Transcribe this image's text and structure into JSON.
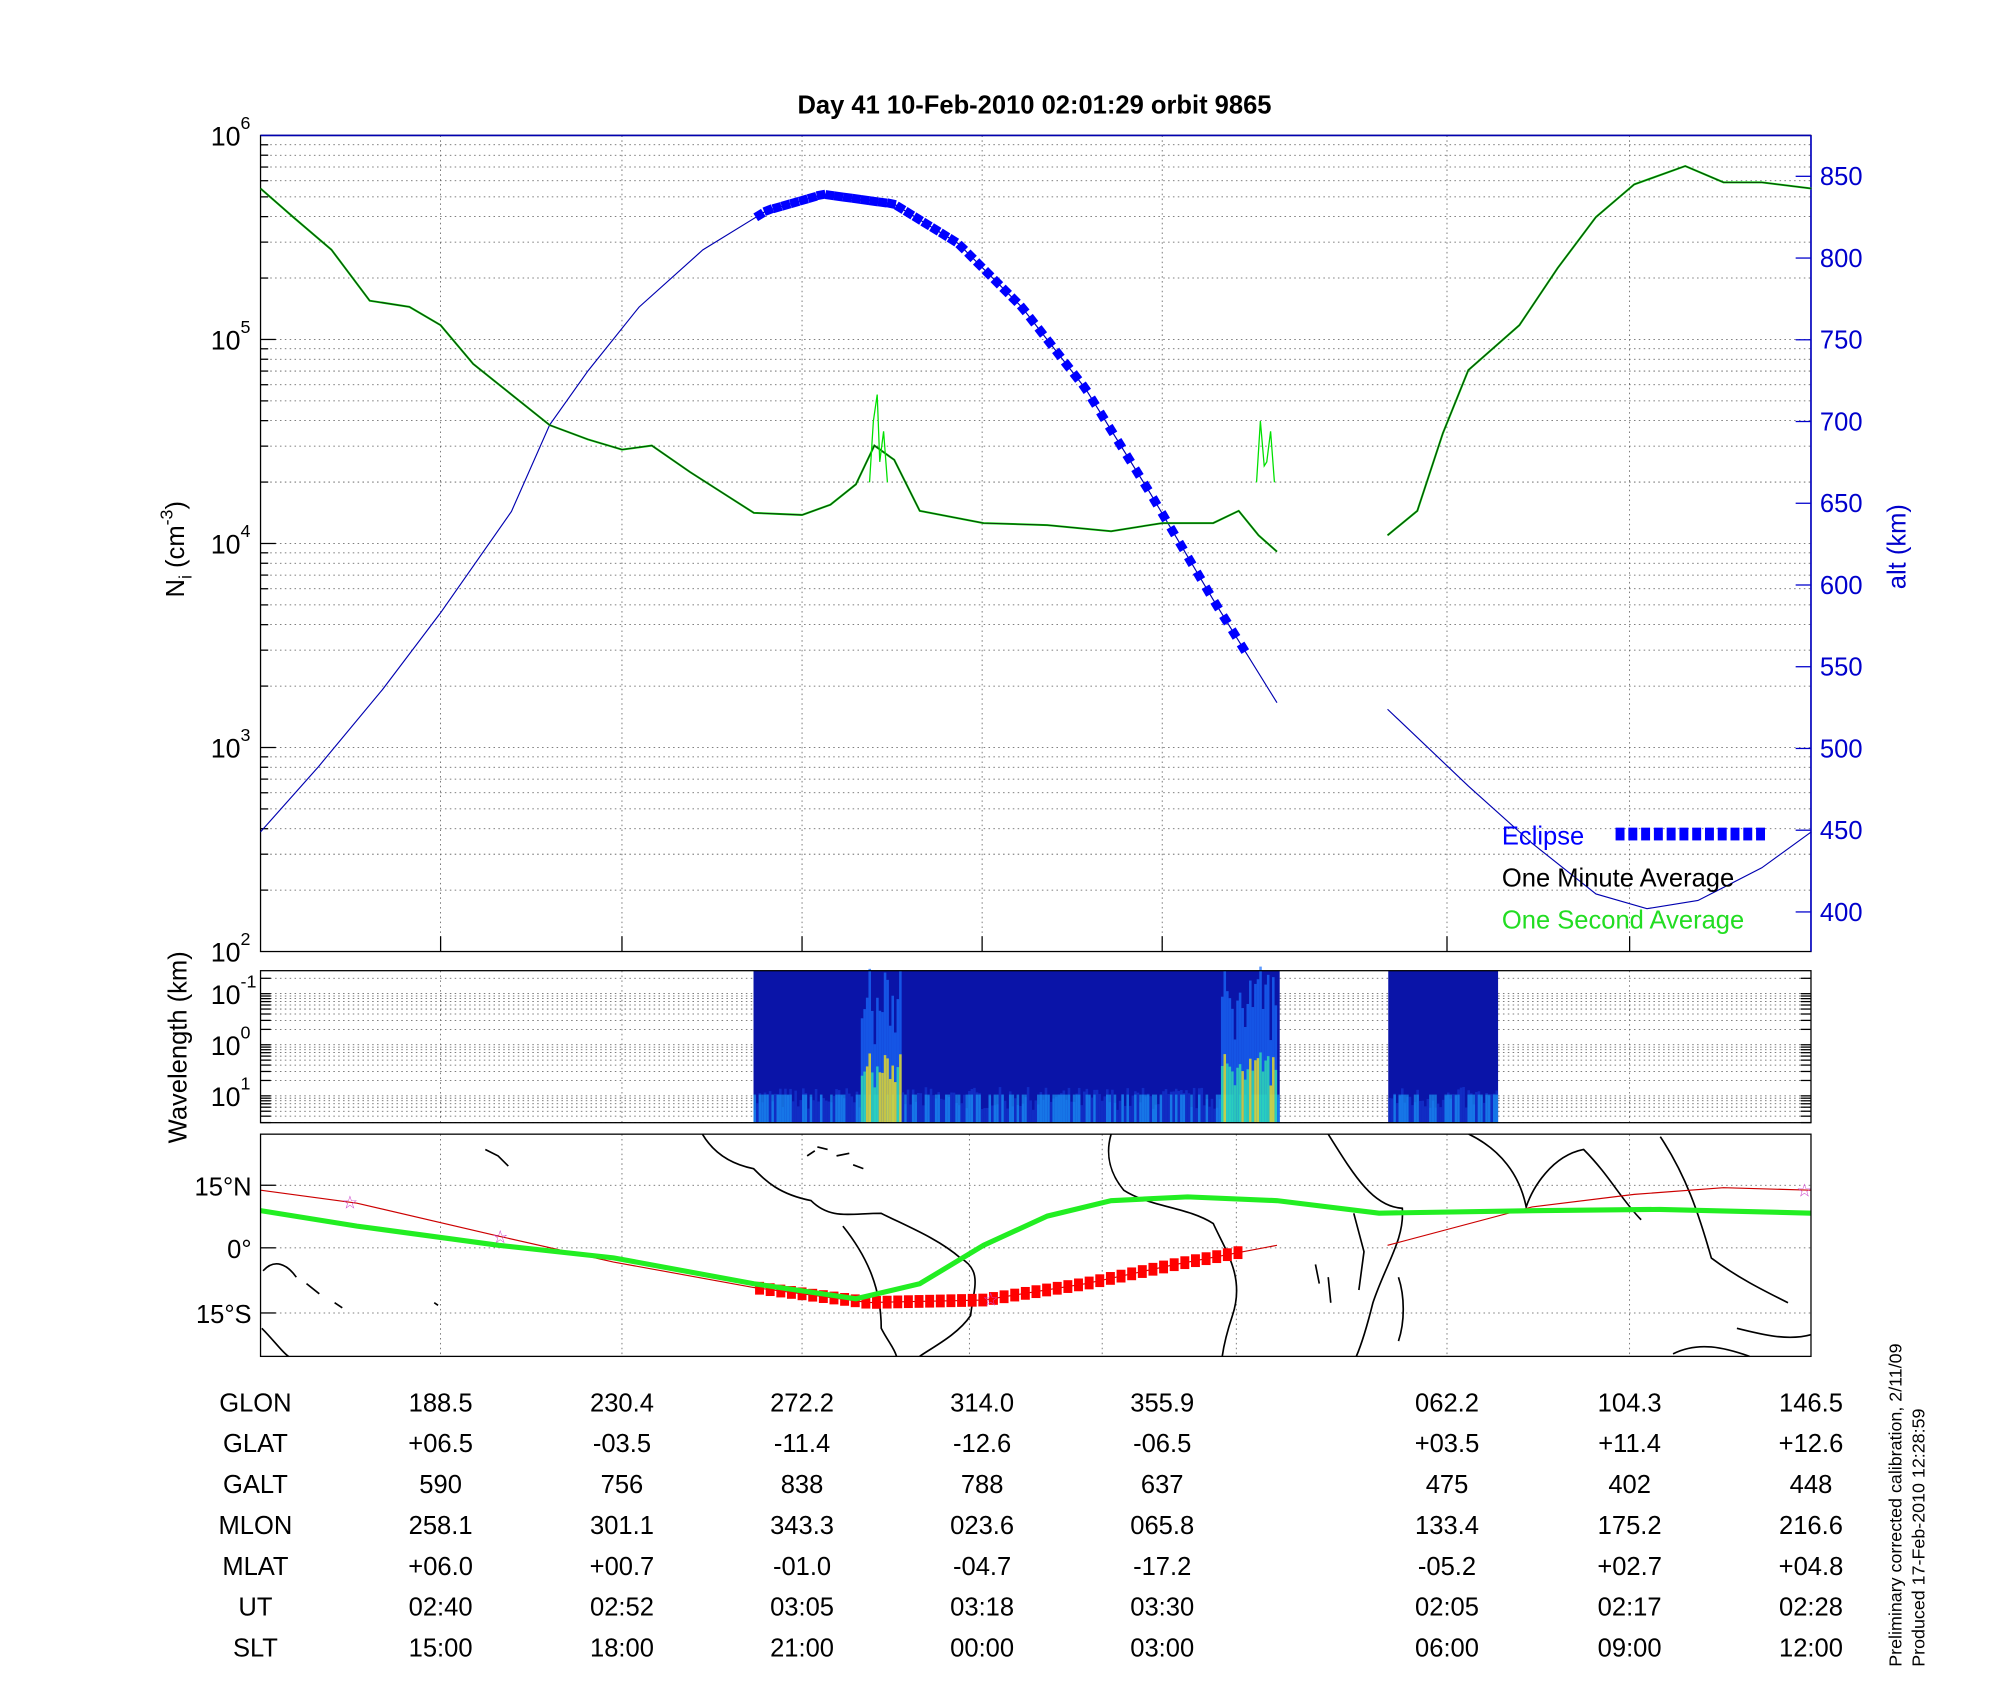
{
  "title": "Day 41  10-Feb-2010 02:01:29   orbit 9865",
  "colors": {
    "eclipse": "#0000ff",
    "minute_avg": "#000000",
    "second_avg": "#00e000",
    "altitude": "#0000b0",
    "orbit_track": "#cc0000",
    "eclipse_track": "#ff0000",
    "mag_equator": "#22ee22",
    "star": "#cc44cc"
  },
  "panel_density": {
    "ylabel_main": "N",
    "ylabel_sub": "i",
    "ylabel_unit": " (cm",
    "ylabel_exp": "-3",
    "ylabel_close": ")",
    "left_ticks": [
      {
        "base": "10",
        "exp": "6"
      },
      {
        "base": "10",
        "exp": "5"
      },
      {
        "base": "10",
        "exp": "4"
      },
      {
        "base": "10",
        "exp": "3"
      },
      {
        "base": "10",
        "exp": "2"
      }
    ],
    "right_label": "alt (km)",
    "right_ticks": [
      "850",
      "800",
      "750",
      "700",
      "650",
      "600",
      "550",
      "500",
      "450",
      "400"
    ],
    "legend": {
      "eclipse": "Eclipse",
      "minute": "One Minute Average",
      "second": "One Second Average"
    }
  },
  "panel_spectrogram": {
    "ylabel": "Wavelength (km)",
    "ticks": [
      {
        "base": "10",
        "exp": "-1"
      },
      {
        "base": "10",
        "exp": "0"
      },
      {
        "base": "10",
        "exp": "1"
      }
    ]
  },
  "panel_map": {
    "ticks": [
      "15°N",
      "0°",
      "15°S"
    ]
  },
  "table": {
    "labels": [
      "GLON",
      "GLAT",
      "GALT",
      "MLON",
      "MLAT",
      "UT",
      "SLT"
    ],
    "rows": [
      [
        "188.5",
        "230.4",
        "272.2",
        "314.0",
        "355.9",
        "062.2",
        "104.3",
        "146.5"
      ],
      [
        "+06.5",
        "-03.5",
        "-11.4",
        "-12.6",
        "-06.5",
        "+03.5",
        "+11.4",
        "+12.6"
      ],
      [
        "590",
        "756",
        "838",
        "788",
        "637",
        "475",
        "402",
        "448"
      ],
      [
        "258.1",
        "301.1",
        "343.3",
        "023.6",
        "065.8",
        "133.4",
        "175.2",
        "216.6"
      ],
      [
        "+06.0",
        "+00.7",
        "-01.0",
        "-04.7",
        "-17.2",
        "-05.2",
        "+02.7",
        "+04.8"
      ],
      [
        "02:40",
        "02:52",
        "03:05",
        "03:18",
        "03:30",
        "02:05",
        "02:17",
        "02:28"
      ],
      [
        "15:00",
        "18:00",
        "21:00",
        "00:00",
        "03:00",
        "06:00",
        "09:00",
        "12:00"
      ]
    ]
  },
  "footnote": {
    "line1": "Preliminary corrected calibration, 2/11/09",
    "line2": "Produced 17-Feb-2010 12:28:59"
  },
  "chart_data": {
    "type": "line",
    "title": "Day 41  10-Feb-2010 02:01:29   orbit 9865",
    "x_unit": "approx. minutes from left edge of plot",
    "xlim": [
      0,
      109.4
    ],
    "density": {
      "ylabel": "Ni (cm^-3)",
      "scale": "log",
      "ylim": [
        100,
        1000000
      ],
      "segments": [
        {
          "x": [
            0,
            2.3,
            5,
            7.7,
            10.5,
            12.7,
            15,
            17.7,
            20.4,
            23.1,
            25.5,
            27.6,
            30.3,
            33,
            34.8,
            38.2,
            40.2,
            42,
            43.3,
            44.7,
            46.5,
            51,
            55.5,
            60,
            63.6,
            67.2,
            69,
            70.4,
            71.7
          ],
          "log10_value": [
            5.74,
            5.6,
            5.44,
            5.19,
            5.16,
            5.07,
            4.88,
            4.73,
            4.58,
            4.51,
            4.46,
            4.48,
            4.35,
            4.23,
            4.15,
            4.14,
            4.19,
            4.29,
            4.48,
            4.41,
            4.16,
            4.1,
            4.09,
            4.06,
            4.1,
            4.1,
            4.16,
            4.04,
            3.96
          ]
        },
        {
          "x": [
            79.5,
            81.6,
            83.4,
            85.2,
            88.8,
            91.5,
            94.2,
            96.9,
            100.5,
            103.2,
            105.9,
            109.4
          ],
          "log10_value": [
            4.04,
            4.16,
            4.54,
            4.85,
            5.07,
            5.35,
            5.6,
            5.76,
            5.85,
            5.77,
            5.77,
            5.74
          ]
        }
      ],
      "spikes": [
        {
          "x": 43.5,
          "log10_value": 4.73
        },
        {
          "x": 70.8,
          "log10_value": 4.38
        }
      ]
    },
    "altitude": {
      "ylabel": "alt (km)",
      "ylim": [
        375,
        875
      ],
      "segments": [
        {
          "x": [
            0,
            4.1,
            8.6,
            12.7,
            17.7,
            20.4,
            23.1,
            26.7,
            31.2,
            35.7,
            39.7,
            44.7,
            49.2,
            53.7,
            58.2,
            62.7,
            67.2,
            71.7
          ],
          "value": [
            449,
            489,
            536,
            583,
            645,
            698,
            731,
            770,
            805,
            829,
            839,
            833,
            809,
            770,
            720,
            657,
            591,
            528
          ]
        },
        {
          "x": [
            79.5,
            85.2,
            89.7,
            94.2,
            97.8,
            101.4,
            105.9,
            109.4
          ],
          "value": [
            524,
            477,
            442,
            411,
            402,
            407,
            427,
            449
          ]
        }
      ],
      "eclipse_range": [
        35.2,
        69.5
      ]
    },
    "map": {
      "ylim_lat": [
        -26,
        27
      ],
      "mag_equator": {
        "x": [
          0,
          6.8,
          16.8,
          24.9,
          34.8,
          42,
          46.5,
          51,
          55.5,
          60,
          65.4,
          71.7,
          78.9,
          89.7,
          98.7,
          109.4
        ],
        "lat": [
          8.9,
          5.2,
          0.6,
          -2.4,
          -8.6,
          -12.2,
          -8.6,
          0.6,
          7.6,
          11.3,
          12.2,
          11.3,
          8.3,
          8.9,
          9.2,
          8.3
        ]
      },
      "orbit_track": [
        {
          "x": [
            0,
            6.8,
            16.8,
            24.9,
            34.8,
            42.9,
            51,
            58.2,
            64.5,
            71.7
          ],
          "lat": [
            13.8,
            10.7,
            2.8,
            -3.4,
            -9.5,
            -13.1,
            -12.5,
            -8.6,
            -4,
            0.6
          ]
        },
        {
          "x": [
            79.5,
            89.7,
            96.9,
            103.2,
            109.4
          ],
          "lat": [
            0.6,
            9.8,
            12.8,
            14.4,
            13.8
          ]
        }
      ],
      "stars_x": [
        6.3,
        16.9,
        51.5,
        108.9
      ]
    }
  }
}
